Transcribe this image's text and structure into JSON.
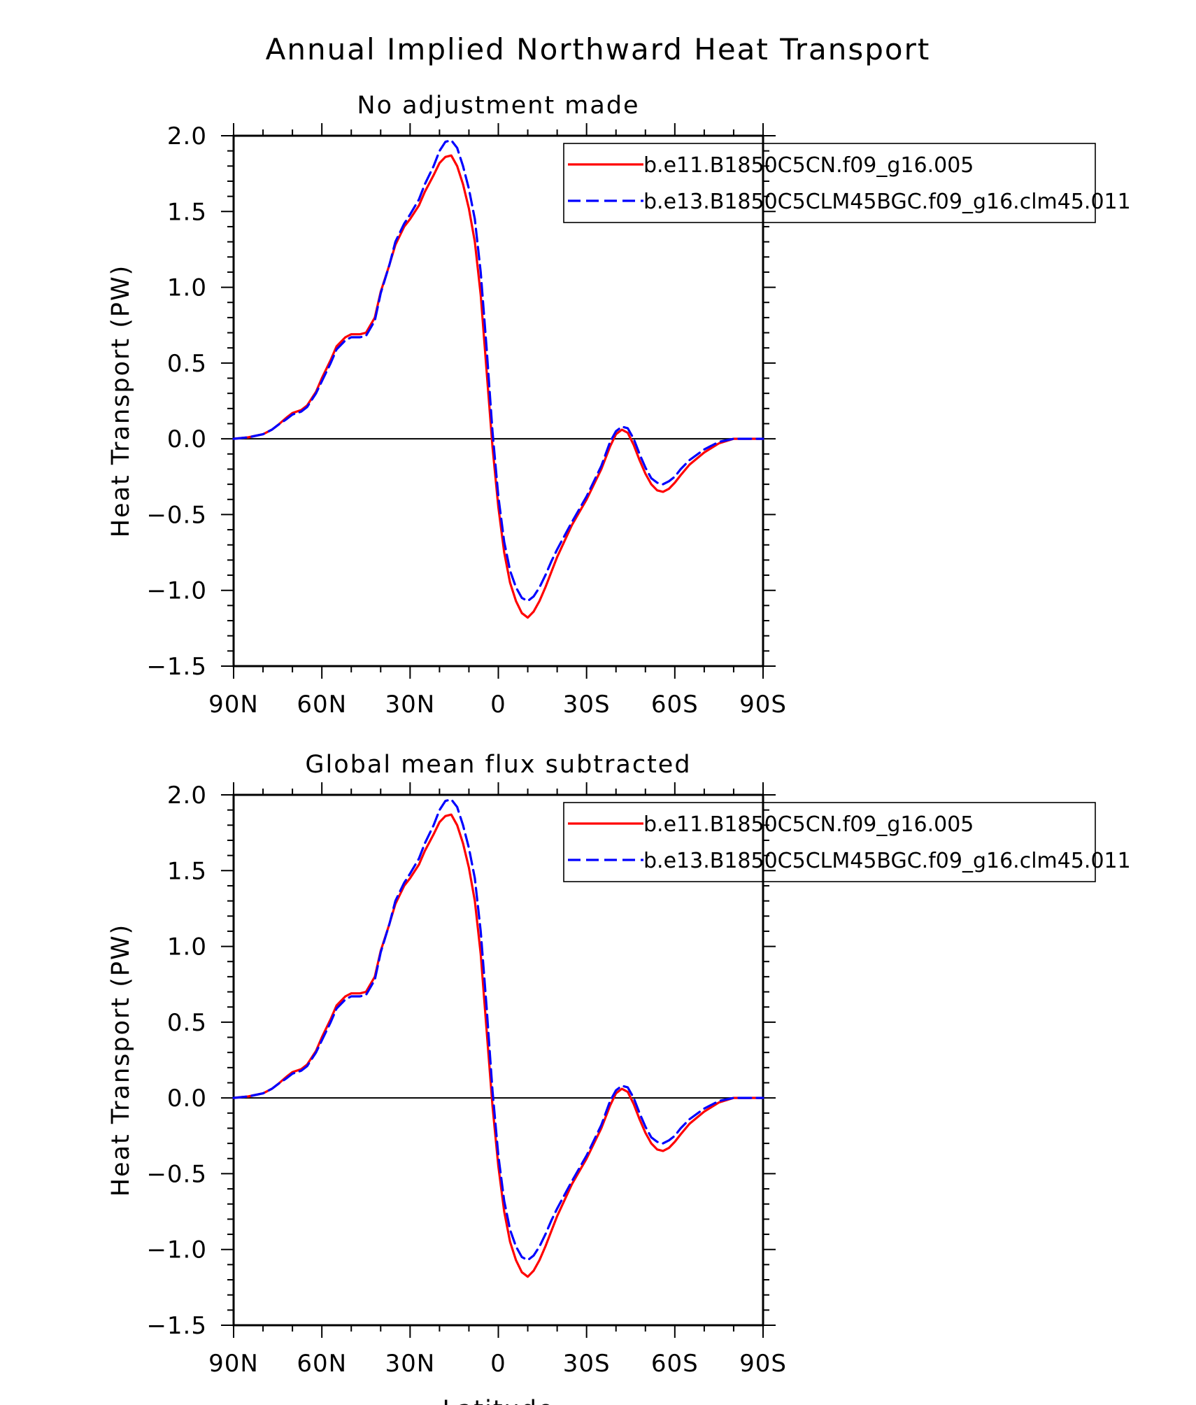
{
  "figure": {
    "title": "Annual Implied Northward Heat Transport"
  },
  "chart_data": [
    {
      "type": "line",
      "title": "No adjustment made",
      "xlabel": "",
      "ylabel": "Heat Transport (PW)",
      "xlim": [
        90,
        -90
      ],
      "ylim": [
        -1.5,
        2.0
      ],
      "x_direction": "north-to-south",
      "xticks": [
        90,
        60,
        30,
        0,
        -30,
        -60,
        -90
      ],
      "xtick_labels": [
        "90N",
        "60N",
        "30N",
        "0",
        "30S",
        "60S",
        "90S"
      ],
      "yticks": [
        -1.5,
        -1.0,
        -0.5,
        0.0,
        0.5,
        1.0,
        1.5,
        2.0
      ],
      "ytick_labels": [
        "−1.5",
        "−1.0",
        "−0.5",
        "0.0",
        "0.5",
        "1.0",
        "1.5",
        "2.0"
      ],
      "zero_line": true,
      "legend_position": "top-right",
      "x": [
        90,
        85,
        80,
        77,
        75,
        72,
        70,
        67,
        65,
        62,
        60,
        57,
        55,
        52,
        50,
        47,
        45,
        42,
        40,
        37,
        35,
        32,
        30,
        27,
        25,
        22,
        20,
        18,
        16,
        14,
        12,
        10,
        8,
        6,
        4,
        2,
        0,
        -2,
        -4,
        -6,
        -8,
        -10,
        -12,
        -14,
        -16,
        -18,
        -20,
        -25,
        -30,
        -35,
        -38,
        -40,
        -42,
        -44,
        -46,
        -48,
        -50,
        -52,
        -54,
        -56,
        -58,
        -60,
        -62,
        -65,
        -70,
        -75,
        -80,
        -85,
        -90
      ],
      "series": [
        {
          "name": "b.e11.B1850C5CN.f09_g16.005",
          "color": "#ff0000",
          "dash": "solid",
          "values": [
            0.0,
            0.01,
            0.03,
            0.06,
            0.09,
            0.14,
            0.17,
            0.19,
            0.22,
            0.31,
            0.4,
            0.52,
            0.61,
            0.67,
            0.69,
            0.69,
            0.7,
            0.8,
            0.97,
            1.15,
            1.28,
            1.4,
            1.45,
            1.54,
            1.63,
            1.74,
            1.82,
            1.86,
            1.87,
            1.8,
            1.68,
            1.52,
            1.3,
            0.95,
            0.45,
            -0.05,
            -0.45,
            -0.75,
            -0.95,
            -1.07,
            -1.15,
            -1.18,
            -1.14,
            -1.07,
            -0.98,
            -0.88,
            -0.78,
            -0.57,
            -0.4,
            -0.2,
            -0.05,
            0.03,
            0.06,
            0.04,
            -0.04,
            -0.14,
            -0.23,
            -0.3,
            -0.34,
            -0.35,
            -0.33,
            -0.29,
            -0.24,
            -0.17,
            -0.09,
            -0.03,
            0.0,
            0.0,
            0.0
          ]
        },
        {
          "name": "b.e13.B1850C5CLM45BGC.f09_g16.clm45.011",
          "color": "#0000ff",
          "dash": "dashed",
          "values": [
            0.0,
            0.01,
            0.03,
            0.06,
            0.09,
            0.13,
            0.16,
            0.18,
            0.21,
            0.3,
            0.38,
            0.5,
            0.59,
            0.65,
            0.67,
            0.67,
            0.68,
            0.78,
            0.96,
            1.15,
            1.3,
            1.42,
            1.48,
            1.58,
            1.68,
            1.8,
            1.9,
            1.96,
            1.97,
            1.92,
            1.8,
            1.65,
            1.45,
            1.1,
            0.6,
            0.05,
            -0.38,
            -0.68,
            -0.87,
            -0.98,
            -1.05,
            -1.07,
            -1.04,
            -0.98,
            -0.9,
            -0.81,
            -0.73,
            -0.55,
            -0.38,
            -0.18,
            -0.02,
            0.05,
            0.08,
            0.07,
            0.0,
            -0.1,
            -0.19,
            -0.26,
            -0.29,
            -0.3,
            -0.28,
            -0.25,
            -0.2,
            -0.14,
            -0.07,
            -0.02,
            0.0,
            0.0,
            0.0
          ]
        }
      ]
    },
    {
      "type": "line",
      "title": "Global mean flux subtracted",
      "xlabel": "Latitude",
      "ylabel": "Heat Transport (PW)",
      "xlim": [
        90,
        -90
      ],
      "ylim": [
        -1.5,
        2.0
      ],
      "x_direction": "north-to-south",
      "xticks": [
        90,
        60,
        30,
        0,
        -30,
        -60,
        -90
      ],
      "xtick_labels": [
        "90N",
        "60N",
        "30N",
        "0",
        "30S",
        "60S",
        "90S"
      ],
      "yticks": [
        -1.5,
        -1.0,
        -0.5,
        0.0,
        0.5,
        1.0,
        1.5,
        2.0
      ],
      "ytick_labels": [
        "−1.5",
        "−1.0",
        "−0.5",
        "0.0",
        "0.5",
        "1.0",
        "1.5",
        "2.0"
      ],
      "zero_line": true,
      "legend_position": "top-right",
      "x": [
        90,
        85,
        80,
        77,
        75,
        72,
        70,
        67,
        65,
        62,
        60,
        57,
        55,
        52,
        50,
        47,
        45,
        42,
        40,
        37,
        35,
        32,
        30,
        27,
        25,
        22,
        20,
        18,
        16,
        14,
        12,
        10,
        8,
        6,
        4,
        2,
        0,
        -2,
        -4,
        -6,
        -8,
        -10,
        -12,
        -14,
        -16,
        -18,
        -20,
        -25,
        -30,
        -35,
        -38,
        -40,
        -42,
        -44,
        -46,
        -48,
        -50,
        -52,
        -54,
        -56,
        -58,
        -60,
        -62,
        -65,
        -70,
        -75,
        -80,
        -85,
        -90
      ],
      "series": [
        {
          "name": "b.e11.B1850C5CN.f09_g16.005",
          "color": "#ff0000",
          "dash": "solid",
          "values": [
            0.0,
            0.01,
            0.03,
            0.06,
            0.09,
            0.14,
            0.17,
            0.19,
            0.22,
            0.31,
            0.4,
            0.52,
            0.61,
            0.67,
            0.69,
            0.69,
            0.7,
            0.8,
            0.97,
            1.15,
            1.28,
            1.4,
            1.45,
            1.54,
            1.63,
            1.74,
            1.82,
            1.86,
            1.87,
            1.8,
            1.68,
            1.52,
            1.3,
            0.95,
            0.45,
            -0.05,
            -0.45,
            -0.75,
            -0.95,
            -1.07,
            -1.15,
            -1.18,
            -1.14,
            -1.07,
            -0.98,
            -0.88,
            -0.78,
            -0.57,
            -0.4,
            -0.2,
            -0.05,
            0.03,
            0.06,
            0.04,
            -0.04,
            -0.14,
            -0.23,
            -0.3,
            -0.34,
            -0.35,
            -0.33,
            -0.29,
            -0.24,
            -0.17,
            -0.09,
            -0.03,
            0.0,
            0.0,
            0.0
          ]
        },
        {
          "name": "b.e13.B1850C5CLM45BGC.f09_g16.clm45.011",
          "color": "#0000ff",
          "dash": "dashed",
          "values": [
            0.0,
            0.01,
            0.03,
            0.06,
            0.09,
            0.13,
            0.16,
            0.18,
            0.21,
            0.3,
            0.38,
            0.5,
            0.59,
            0.65,
            0.67,
            0.67,
            0.68,
            0.78,
            0.96,
            1.15,
            1.3,
            1.42,
            1.48,
            1.58,
            1.68,
            1.8,
            1.9,
            1.96,
            1.97,
            1.92,
            1.8,
            1.65,
            1.45,
            1.1,
            0.6,
            0.05,
            -0.38,
            -0.68,
            -0.87,
            -0.98,
            -1.05,
            -1.07,
            -1.04,
            -0.98,
            -0.9,
            -0.81,
            -0.73,
            -0.55,
            -0.38,
            -0.18,
            -0.02,
            0.05,
            0.08,
            0.07,
            0.0,
            -0.1,
            -0.19,
            -0.26,
            -0.29,
            -0.3,
            -0.28,
            -0.25,
            -0.2,
            -0.14,
            -0.07,
            -0.02,
            0.0,
            0.0,
            0.0
          ]
        }
      ]
    }
  ]
}
